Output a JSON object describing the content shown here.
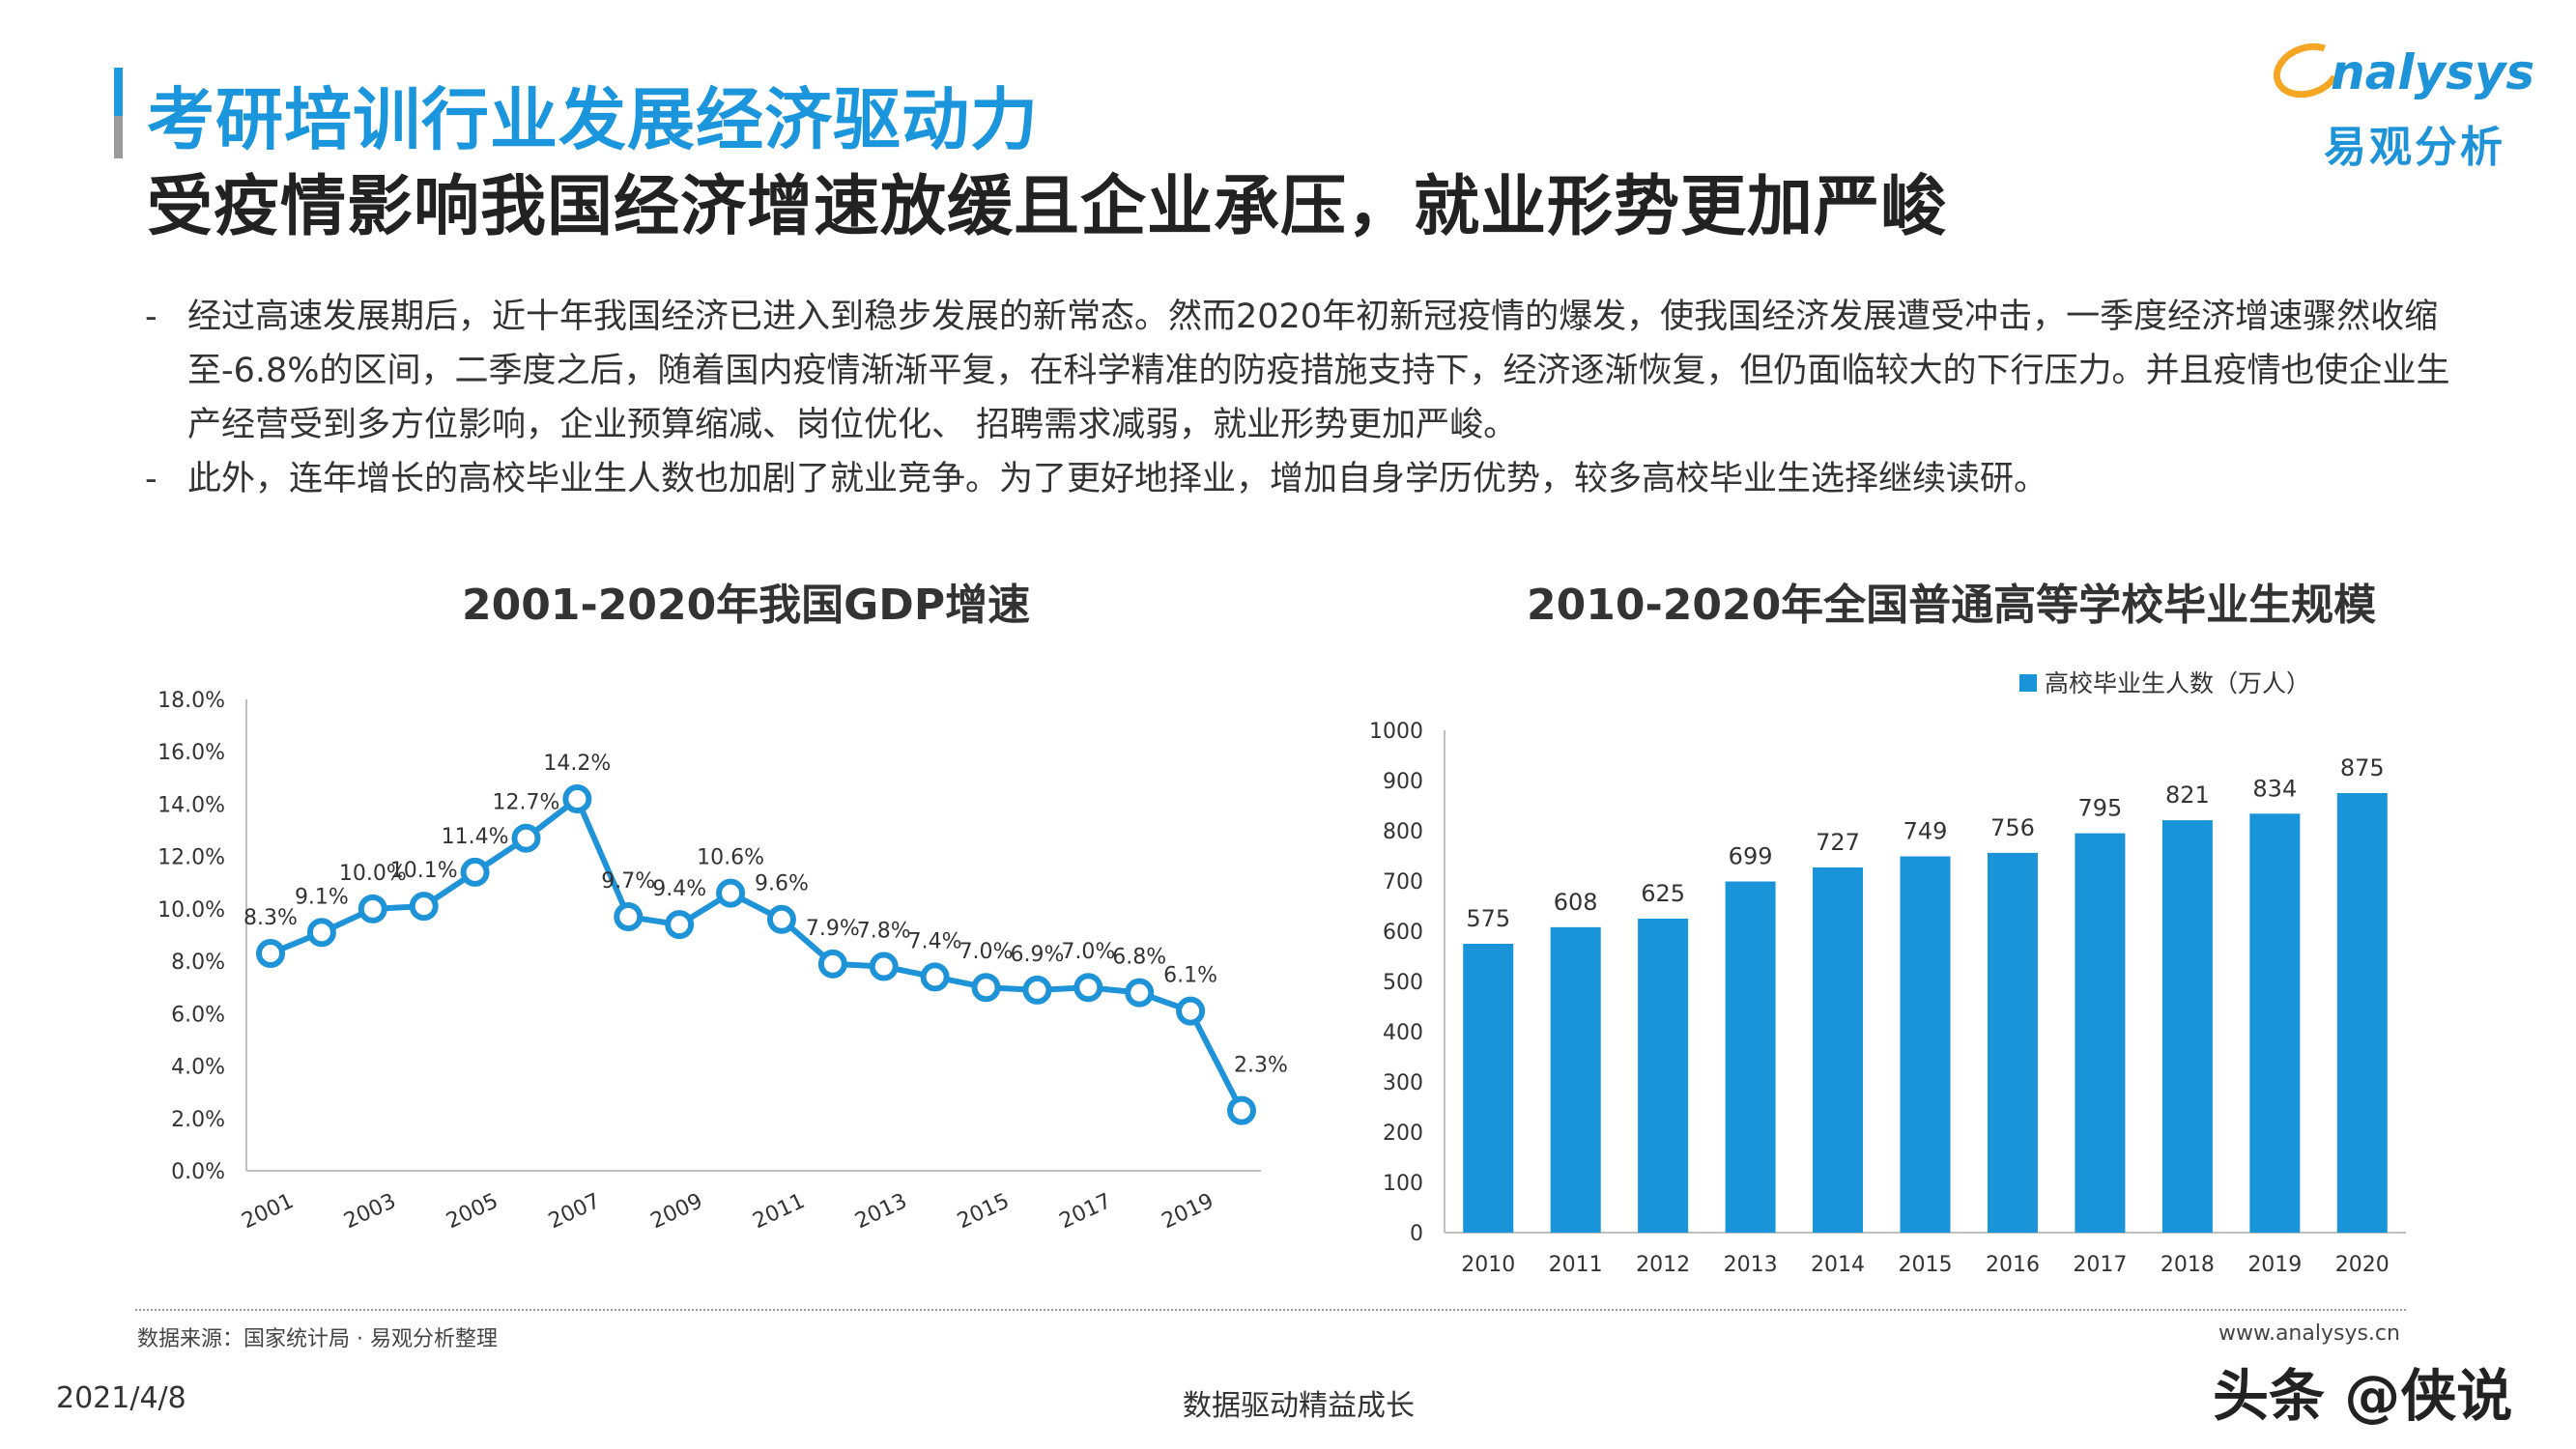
{
  "header": {
    "title_main": "考研培训行业发展经济驱动力",
    "subtitle": "受疫情影响我国经济增速放缓且企业承压，就业形势更加严峻",
    "logo_en": "nalysys",
    "logo_cn": "易观分析"
  },
  "bullets": [
    "经过高速发展期后，近十年我国经济已进入到稳步发展的新常态。然而2020年初新冠疫情的爆发，使我国经济发展遭受冲击，一季度经济增速骤然收缩至-6.8%的区间，二季度之后，随着国内疫情渐渐平复，在科学精准的防疫措施支持下，经济逐渐恢复，但仍面临较大的下行压力。并且疫情也使企业生产经营受到多方位影响，企业预算缩减、岗位优化、 招聘需求减弱，就业形势更加严峻。",
    "此外，连年增长的高校毕业生人数也加剧了就业竞争。为了更好地择业，增加自身学历优势，较多高校毕业生选择继续读研。"
  ],
  "bullet_dash": "-",
  "chart_data": [
    {
      "type": "line",
      "title": "2001-2020年我国GDP增速",
      "x": [
        2001,
        2002,
        2003,
        2004,
        2005,
        2006,
        2007,
        2008,
        2009,
        2010,
        2011,
        2012,
        2013,
        2014,
        2015,
        2016,
        2017,
        2018,
        2019,
        2020
      ],
      "x_tick_labels": [
        "2001",
        "2003",
        "2005",
        "2007",
        "2009",
        "2011",
        "2013",
        "2015",
        "2017",
        "2019"
      ],
      "values": [
        8.3,
        9.1,
        10.0,
        10.1,
        11.4,
        12.7,
        14.2,
        9.7,
        9.4,
        10.6,
        9.6,
        7.9,
        7.8,
        7.4,
        7.0,
        6.9,
        7.0,
        6.8,
        6.1,
        2.3
      ],
      "data_labels": [
        "8.3%",
        "9.1%",
        "10.0%",
        "10.1%",
        "11.4%",
        "12.7%",
        "14.2%",
        "9.7%",
        "9.4%",
        "10.6%",
        "9.6%",
        "7.9%",
        "7.8%",
        "7.4%",
        "7.0%",
        "6.9%",
        "7.0%",
        "6.8%",
        "6.1%",
        "2.3%"
      ],
      "y_tick_labels": [
        "0.0%",
        "2.0%",
        "4.0%",
        "6.0%",
        "8.0%",
        "10.0%",
        "12.0%",
        "14.0%",
        "16.0%",
        "18.0%"
      ],
      "ylim": [
        0,
        18
      ],
      "color": "#1e93d8",
      "marker_fill": "#ffffff",
      "grid": false
    },
    {
      "type": "bar",
      "title": "2010-2020年全国普通高等学校毕业生规模",
      "categories": [
        "2010",
        "2011",
        "2012",
        "2013",
        "2014",
        "2015",
        "2016",
        "2017",
        "2018",
        "2019",
        "2020"
      ],
      "series": [
        {
          "name": "高校毕业生人数（万人）",
          "values": [
            575,
            608,
            625,
            699,
            727,
            749,
            756,
            795,
            821,
            834,
            875
          ]
        }
      ],
      "y_tick_labels": [
        "0",
        "100",
        "200",
        "300",
        "400",
        "500",
        "600",
        "700",
        "800",
        "900",
        "1000"
      ],
      "ylim": [
        0,
        1000
      ],
      "legend_position": "top-right",
      "color": "#1a94d9",
      "grid": false
    }
  ],
  "footer": {
    "source": "数据来源：国家统计局 · 易观分析整理",
    "site": "www.analysys.cn",
    "date": "2021/4/8",
    "slogan": "数据驱动精益成长",
    "watermark": "头条 @侠说"
  }
}
